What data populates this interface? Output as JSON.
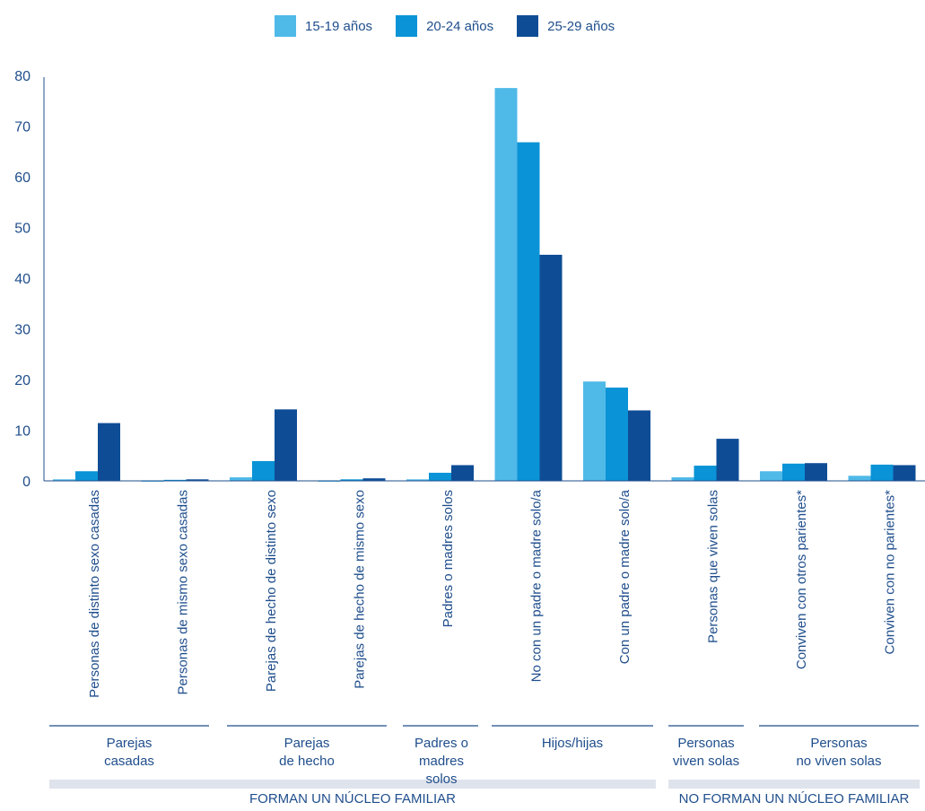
{
  "legend": [
    {
      "label": "15-19 años",
      "color": "#4fb9e8"
    },
    {
      "label": "20-24 años",
      "color": "#0a93d6"
    },
    {
      "label": "25-29 años",
      "color": "#0e4d96"
    }
  ],
  "chart_data": {
    "type": "bar",
    "title": "",
    "xlabel": "",
    "ylabel": "",
    "ylim": [
      0,
      80
    ],
    "yticks": [
      0,
      10,
      20,
      30,
      40,
      50,
      60,
      70,
      80
    ],
    "grid": false,
    "legend_position": "top-center",
    "categories": [
      "Personas de distinto sexo casadas",
      "Personas de mismo sexo casadas",
      "Parejas de hecho de distinto sexo",
      "Parejas de hecho de mismo sexo",
      "Padres o madres solos",
      "No con un padre o madre solo/a",
      "Con un padre o madre solo/a",
      "Personas que viven solas",
      "Conviven con otros parientes*",
      "Conviven con no parientes*"
    ],
    "series": [
      {
        "name": "15-19 años",
        "values": [
          0.3,
          0.1,
          0.7,
          0.1,
          0.3,
          77.5,
          19.6,
          0.7,
          1.9,
          1.0
        ]
      },
      {
        "name": "20-24 años",
        "values": [
          1.9,
          0.2,
          3.9,
          0.3,
          1.6,
          66.8,
          18.4,
          3.0,
          3.4,
          3.2
        ]
      },
      {
        "name": "25-29 años",
        "values": [
          11.4,
          0.3,
          14.1,
          0.5,
          3.1,
          44.6,
          13.9,
          8.3,
          3.5,
          3.1
        ]
      }
    ],
    "groups": [
      {
        "label": "Parejas\ncasadas"
      },
      {
        "label": "Parejas\nde hecho"
      },
      {
        "label": "Padres o\nmadres solos"
      },
      {
        "label": "Hijos/hijas"
      },
      {
        "label": "Personas\nviven solas"
      },
      {
        "label": "Personas\nno viven solas"
      }
    ],
    "supergroups": [
      {
        "label": "FORMAN UN NÚCLEO FAMILIAR"
      },
      {
        "label": "NO FORMAN UN NÚCLEO FAMILIAR"
      }
    ]
  }
}
